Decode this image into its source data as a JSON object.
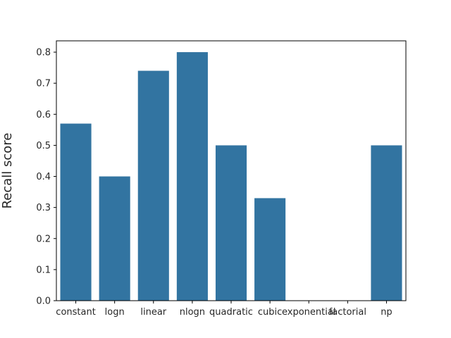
{
  "chart_data": {
    "type": "bar",
    "categories": [
      "constant",
      "logn",
      "linear",
      "nlogn",
      "quadratic",
      "cubic",
      "exponential",
      "factorial",
      "np"
    ],
    "values": [
      0.57,
      0.4,
      0.74,
      0.8,
      0.5,
      0.33,
      0.0,
      0.0,
      0.5
    ],
    "title": "",
    "xlabel": "",
    "ylabel": "Recall score",
    "ylim": [
      0,
      0.8364
    ],
    "yticks": [
      0.0,
      0.1,
      0.2,
      0.3,
      0.4,
      0.5,
      0.6,
      0.7,
      0.8
    ],
    "grid": false,
    "bar_color": "#3274a1"
  }
}
